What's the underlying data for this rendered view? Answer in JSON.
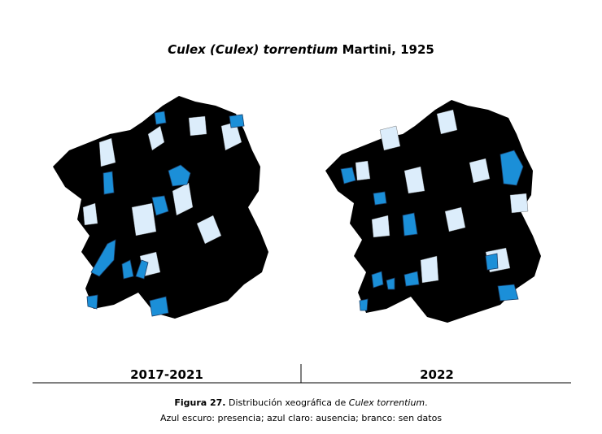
{
  "title": {
    "italic": "Culex (Culex) torrentium",
    "rest": "Martini, 1925"
  },
  "panels": [
    {
      "label": "2017-2021"
    },
    {
      "label": "2022"
    }
  ],
  "caption": {
    "figure": "Figura 27.",
    "text": "Distribución xeográfica de",
    "species": "Culex torrentium",
    "end": ".",
    "legend": "Azul escuro: presencia; azul claro: ausencia; branco: sen datos"
  }
}
